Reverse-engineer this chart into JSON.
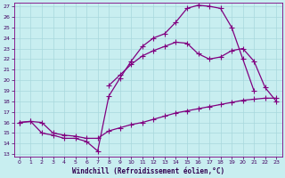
{
  "xlabel": "Windchill (Refroidissement éolien,°C)",
  "bg_color": "#c8eef0",
  "line_color": "#800080",
  "grid_color": "#a8d8dc",
  "xlim": [
    -0.5,
    23.5
  ],
  "ylim": [
    12.8,
    27.3
  ],
  "yticks": [
    13,
    14,
    15,
    16,
    17,
    18,
    19,
    20,
    21,
    22,
    23,
    24,
    25,
    26,
    27
  ],
  "xticks": [
    0,
    1,
    2,
    3,
    4,
    5,
    6,
    7,
    8,
    9,
    10,
    11,
    12,
    13,
    14,
    15,
    16,
    17,
    18,
    19,
    20,
    21,
    22,
    23
  ],
  "line1_x": [
    0,
    1,
    2,
    3,
    4,
    5,
    6,
    7,
    8,
    9,
    10,
    11,
    12,
    13,
    14,
    15,
    16,
    17,
    18,
    19,
    20,
    21,
    22,
    23
  ],
  "line1_y": [
    16.0,
    16.1,
    16.0,
    15.0,
    14.8,
    14.7,
    14.5,
    14.5,
    15.2,
    15.5,
    15.8,
    16.0,
    16.3,
    16.6,
    16.9,
    17.1,
    17.3,
    17.5,
    17.7,
    17.9,
    18.1,
    18.2,
    18.3,
    18.3
  ],
  "line2_x": [
    0,
    1,
    2,
    3,
    4,
    5,
    6,
    7,
    8,
    9,
    10,
    11,
    12,
    13,
    14,
    15,
    16,
    17,
    18,
    19,
    20,
    21
  ],
  "line2_y": [
    16.0,
    16.1,
    15.0,
    14.8,
    14.5,
    14.5,
    14.2,
    13.3,
    18.5,
    20.2,
    21.8,
    23.2,
    24.0,
    24.4,
    25.5,
    26.8,
    27.1,
    27.0,
    26.8,
    25.0,
    22.0,
    19.0
  ],
  "line3_x": [
    8,
    9,
    10,
    11,
    12,
    13,
    14,
    15,
    16,
    17,
    18,
    19,
    20,
    21,
    22,
    23
  ],
  "line3_y": [
    19.5,
    20.5,
    21.5,
    22.3,
    22.8,
    23.2,
    23.6,
    23.5,
    22.5,
    22.0,
    22.2,
    22.8,
    23.0,
    21.8,
    19.3,
    18.0
  ]
}
